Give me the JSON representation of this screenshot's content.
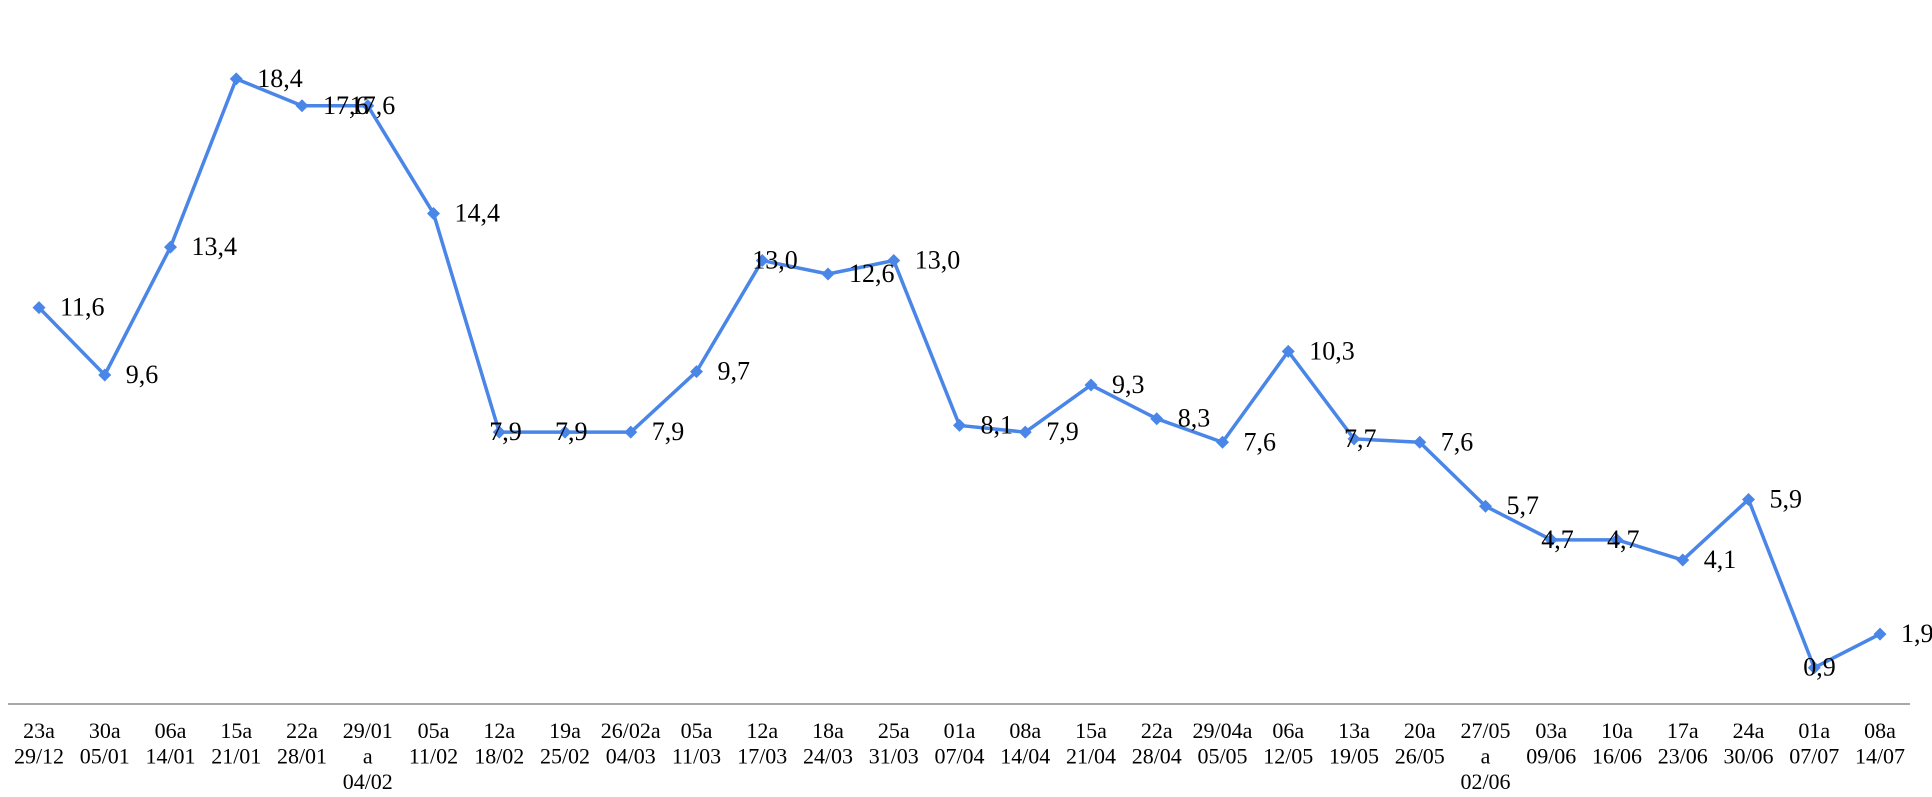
{
  "chart_data": {
    "type": "line",
    "title": "",
    "xlabel": "",
    "ylabel": "",
    "ylim": [
      0,
      20
    ],
    "grid": false,
    "legend": "none",
    "line_color": "#4a86e8",
    "axis_color": "#8c8c8c",
    "marker": "diamond",
    "categories": [
      [
        "23a",
        "29/12"
      ],
      [
        "30a",
        "05/01"
      ],
      [
        "06a",
        "14/01"
      ],
      [
        "15a",
        "21/01"
      ],
      [
        "22a",
        "28/01"
      ],
      [
        "29/01",
        "a",
        "04/02"
      ],
      [
        "05a",
        "11/02"
      ],
      [
        "12a",
        "18/02"
      ],
      [
        "19a",
        "25/02"
      ],
      [
        "26/02a",
        "04/03"
      ],
      [
        "05a",
        "11/03"
      ],
      [
        "12a",
        "17/03"
      ],
      [
        "18a",
        "24/03"
      ],
      [
        "25a",
        "31/03"
      ],
      [
        "01a",
        "07/04"
      ],
      [
        "08a",
        "14/04"
      ],
      [
        "15a",
        "21/04"
      ],
      [
        "22a",
        "28/04"
      ],
      [
        "29/04a",
        "05/05"
      ],
      [
        "06a",
        "12/05"
      ],
      [
        "13a",
        "19/05"
      ],
      [
        "20a",
        "26/05"
      ],
      [
        "27/05",
        "a",
        "02/06"
      ],
      [
        "03a",
        "09/06"
      ],
      [
        "10a",
        "16/06"
      ],
      [
        "17a",
        "23/06"
      ],
      [
        "24a",
        "30/06"
      ],
      [
        "01a",
        "07/07"
      ],
      [
        "08a",
        "14/07"
      ]
    ],
    "series": [
      {
        "values": [
          11.6,
          9.6,
          13.4,
          18.4,
          17.6,
          17.6,
          14.4,
          7.9,
          7.9,
          7.9,
          9.7,
          13.0,
          12.6,
          13.0,
          8.1,
          7.9,
          9.3,
          8.3,
          7.6,
          10.3,
          7.7,
          7.6,
          5.7,
          4.7,
          4.7,
          4.1,
          5.9,
          0.9,
          1.9
        ],
        "data_labels": [
          "11,6",
          "9,6",
          "13,4",
          "18,4",
          "17,6",
          "17,6",
          "14,4",
          "7,9",
          "7,9",
          "7,9",
          "9,7",
          "13,0",
          "12,6",
          "13,0",
          "8,1",
          "7,9",
          "9,3",
          "8,3",
          "7,6",
          "10,3",
          "7,7",
          "7,6",
          "5,7",
          "4,7",
          "4,7",
          "4,1",
          "5,9",
          "0,9",
          "1,9"
        ]
      }
    ]
  }
}
